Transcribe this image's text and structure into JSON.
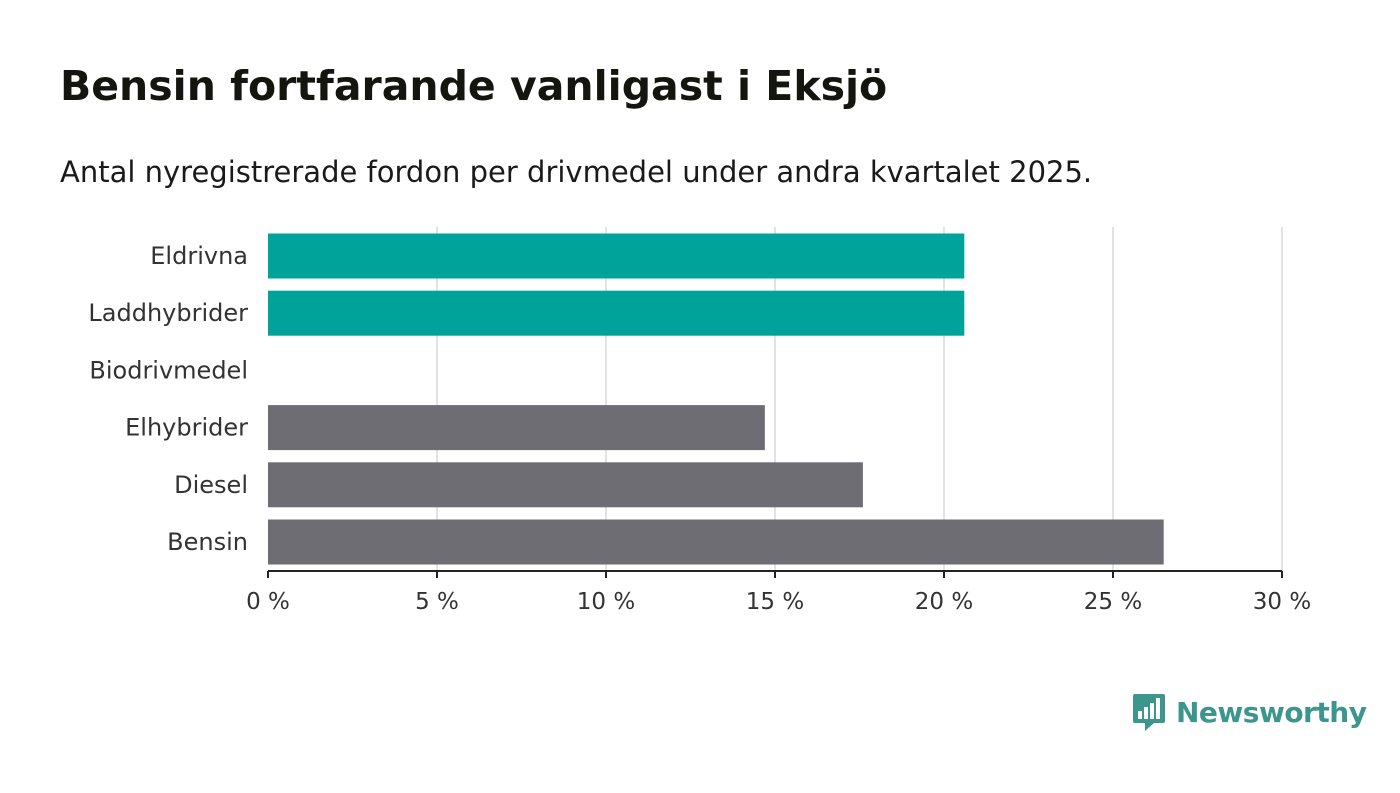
{
  "header": {
    "title": "Bensin fortfarande vanligast i Eksjö",
    "subtitle": "Antal nyregistrerade fordon per drivmedel under andra kvartalet 2025."
  },
  "chart_data": {
    "type": "bar",
    "orientation": "horizontal",
    "categories": [
      "Eldrivna",
      "Laddhybrider",
      "Biodrivmedel",
      "Elhybrider",
      "Diesel",
      "Bensin"
    ],
    "values": [
      20.6,
      20.6,
      0,
      14.7,
      17.6,
      26.5
    ],
    "colors": [
      "#00a39a",
      "#00a39a",
      "#00a39a",
      "#6e6d73",
      "#6e6d73",
      "#6e6d73"
    ],
    "xlim": [
      0,
      30
    ],
    "xticks": [
      0,
      5,
      10,
      15,
      20,
      25,
      30
    ],
    "xtick_labels": [
      "0 %",
      "5 %",
      "10 %",
      "15 %",
      "20 %",
      "25 %",
      "30 %"
    ],
    "grid": "vertical",
    "title": "Bensin fortfarande vanligast i Eksjö",
    "subtitle": "Antal nyregistrerade fordon per drivmedel under andra kvartalet 2025.",
    "xlabel": "",
    "ylabel": ""
  },
  "logo": {
    "text": "Newsworthy",
    "icon": "newsworthy-chart-bubble-icon",
    "color": "#3d968d"
  }
}
